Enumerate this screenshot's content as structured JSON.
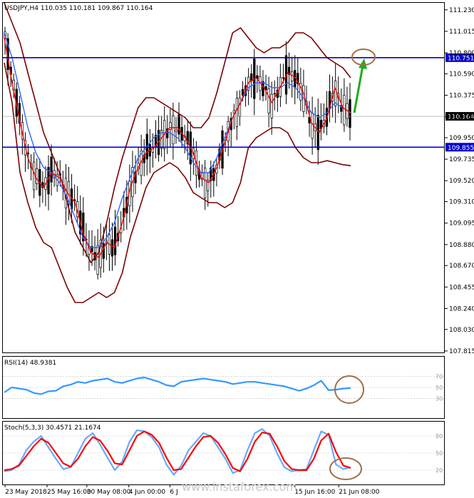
{
  "chart_data": [
    {
      "type": "candlestick",
      "title": "USDJPY,H4",
      "ohlc_text": "110.035 110.181 109.867 110.164",
      "ylim": [
        107.8,
        111.3
      ],
      "y_ticks": [
        "111.230",
        "111.015",
        "110.800",
        "110.590",
        "110.375",
        "110.160",
        "109.950",
        "109.735",
        "109.520",
        "109.310",
        "109.095",
        "108.880",
        "108.670",
        "108.455",
        "108.240",
        "108.030",
        "107.815"
      ],
      "x_ticks": [
        "23 May 2018",
        "25 May 16:00",
        "30 May 08:00",
        "4 Jun 00:00",
        "6 J",
        "15 Jun 16:00",
        "21 Jun 08:00"
      ],
      "levels": [
        {
          "label": "110.751",
          "value": 110.751,
          "color": "#0000cc"
        },
        {
          "label": "109.855",
          "value": 109.855,
          "color": "#0000cc"
        }
      ],
      "current_price": {
        "label": "110.164",
        "value": 110.164
      },
      "series": [
        {
          "values": [
            110.95,
            110.5,
            110.1,
            109.75,
            109.55,
            109.45,
            109.6,
            109.55,
            109.4,
            109.3,
            109.0,
            108.8,
            108.75,
            108.9,
            108.85,
            109.1,
            109.45,
            109.65,
            109.8,
            109.85,
            109.95,
            110.05,
            110.05,
            109.95,
            109.8,
            109.55,
            109.5,
            109.65,
            109.9,
            110.15,
            110.3,
            110.5,
            110.55,
            110.45,
            110.3,
            110.45,
            110.6,
            110.55,
            110.4,
            110.1,
            110.0,
            110.15,
            110.45,
            110.25,
            110.2
          ]
        },
        {
          "values": [
            111.0,
            110.75,
            110.4,
            110.05,
            109.8,
            109.65,
            109.6,
            109.5,
            109.35,
            109.15,
            108.95,
            108.85,
            108.85,
            108.95,
            109.1,
            109.35,
            109.55,
            109.75,
            109.85,
            109.95,
            110.0,
            110.0,
            109.95,
            109.85,
            109.7,
            109.6,
            109.6,
            109.75,
            109.95,
            110.15,
            110.3,
            110.45,
            110.5,
            110.5,
            110.45,
            110.45,
            110.5,
            110.45,
            110.35,
            110.2,
            110.15,
            110.2,
            110.3,
            110.25,
            110.2
          ]
        },
        {
          "values": [
            111.3,
            111.1,
            110.9,
            110.6,
            110.3,
            110.0,
            109.8,
            109.6,
            109.3,
            109.0,
            108.85,
            108.7,
            108.8,
            109.1,
            109.45,
            109.75,
            110.0,
            110.25,
            110.35,
            110.35,
            110.3,
            110.25,
            110.2,
            110.15,
            110.05,
            110.05,
            110.15,
            110.4,
            110.7,
            111.0,
            111.05,
            110.95,
            110.85,
            110.8,
            110.85,
            110.85,
            110.9,
            111.0,
            111.0,
            110.95,
            110.85,
            110.75,
            110.7,
            110.65,
            110.55
          ]
        },
        {
          "values": [
            110.7,
            110.3,
            109.6,
            109.3,
            109.05,
            108.9,
            108.85,
            108.65,
            108.45,
            108.3,
            108.3,
            108.35,
            108.4,
            108.35,
            108.4,
            108.6,
            108.95,
            109.2,
            109.45,
            109.6,
            109.65,
            109.7,
            109.65,
            109.55,
            109.4,
            109.35,
            109.3,
            109.3,
            109.25,
            109.3,
            109.5,
            109.85,
            109.95,
            110.0,
            110.05,
            110.05,
            110.0,
            109.85,
            109.75,
            109.7,
            109.7,
            109.72,
            109.7,
            109.68,
            109.67
          ]
        },
        {
          "values": [
            41,
            50,
            48,
            46,
            40,
            38,
            43,
            44,
            52,
            55,
            60,
            58,
            62,
            64,
            66,
            60,
            58,
            62,
            66,
            68,
            64,
            60,
            54,
            52,
            60,
            62,
            64,
            66,
            64,
            62,
            60,
            56,
            58,
            60,
            60,
            58,
            56,
            54,
            52,
            48,
            44,
            48,
            54,
            62,
            45,
            46,
            48,
            49
          ]
        },
        {
          "values": [
            18,
            20,
            30,
            55,
            70,
            80,
            60,
            40,
            22,
            25,
            50,
            75,
            85,
            65,
            42,
            20,
            35,
            70,
            90,
            88,
            78,
            60,
            30,
            12,
            28,
            55,
            70,
            85,
            80,
            60,
            40,
            15,
            20,
            55,
            85,
            92,
            80,
            50,
            25,
            18,
            20,
            22,
            55,
            88,
            82,
            30,
            22,
            25
          ]
        },
        {
          "values": [
            20,
            22,
            28,
            45,
            62,
            75,
            68,
            50,
            32,
            26,
            40,
            62,
            78,
            72,
            54,
            32,
            30,
            55,
            80,
            88,
            82,
            68,
            42,
            20,
            22,
            42,
            62,
            78,
            80,
            68,
            48,
            24,
            18,
            40,
            70,
            86,
            84,
            62,
            36,
            22,
            20,
            20,
            40,
            72,
            84,
            52,
            28,
            24
          ]
        }
      ]
    },
    {
      "type": "line",
      "title": "RSI(14) 48.9381",
      "ylim": [
        0,
        100
      ],
      "y_ticks": [
        "70",
        "50",
        "30"
      ]
    },
    {
      "type": "line",
      "title": "Stoch(5,3,3) 30.4571 21.1674",
      "ylim": [
        0,
        100
      ],
      "y_ticks": [
        "80",
        "50",
        "20"
      ]
    }
  ],
  "colors": {
    "level_line": "#0000cc",
    "bollinger": "#7a0000",
    "ma_fast": "#ff0000",
    "ma_slow": "#3366ff",
    "candle": "#000000",
    "rsi": "#3399ff",
    "stoch_main": "#ff0000",
    "stoch_signal": "#66aaff",
    "arrow": "#22aa22",
    "circle": "#a0704a",
    "price_box": "#000000"
  },
  "watermark": "www.instaforex.com"
}
